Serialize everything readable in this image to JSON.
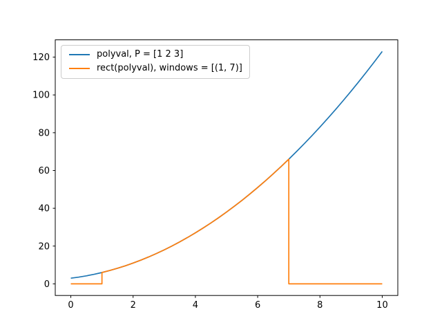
{
  "figure": {
    "background": "#ffffff",
    "axis_color": "#000000",
    "tick_label_color": "#000000"
  },
  "chart_data": {
    "type": "line",
    "title": "",
    "xlabel": "",
    "ylabel": "",
    "xlim": [
      -0.5,
      10.5
    ],
    "ylim": [
      -6.15,
      129.15
    ],
    "xticks": [
      0,
      2,
      4,
      6,
      8,
      10
    ],
    "yticks": [
      0,
      20,
      40,
      60,
      80,
      100,
      120
    ],
    "grid": false,
    "legend": {
      "position": "upper-left",
      "border_color": "#cccccc",
      "background": "#ffffff"
    },
    "series": [
      {
        "name": "polyval, P = [1 2 3]",
        "color": "#1f77b4",
        "x": [
          0,
          0.25,
          0.5,
          0.75,
          1,
          1.25,
          1.5,
          1.75,
          2,
          2.25,
          2.5,
          2.75,
          3,
          3.25,
          3.5,
          3.75,
          4,
          4.25,
          4.5,
          4.75,
          5,
          5.25,
          5.5,
          5.75,
          6,
          6.25,
          6.5,
          6.75,
          7,
          7.25,
          7.5,
          7.75,
          8,
          8.25,
          8.5,
          8.75,
          9,
          9.25,
          9.5,
          9.75,
          10
        ],
        "y": [
          3,
          3.5625,
          4.25,
          5.0625,
          6,
          7.0625,
          8.25,
          9.5625,
          11,
          12.5625,
          14.25,
          16.0625,
          18,
          20.0625,
          22.25,
          24.5625,
          27,
          29.5625,
          32.25,
          35.0625,
          38,
          41.0625,
          44.25,
          47.5625,
          51,
          54.5625,
          58.25,
          62.0625,
          66,
          70.0625,
          74.25,
          78.5625,
          83,
          87.5625,
          92.25,
          97.0625,
          102,
          107.0625,
          112.25,
          117.5625,
          123
        ]
      },
      {
        "name": "rect(polyval), windows = [(1, 7)]",
        "color": "#ff7f0e",
        "x": [
          0,
          1,
          1,
          1.25,
          1.5,
          1.75,
          2,
          2.25,
          2.5,
          2.75,
          3,
          3.25,
          3.5,
          3.75,
          4,
          4.25,
          4.5,
          4.75,
          5,
          5.25,
          5.5,
          5.75,
          6,
          6.25,
          6.5,
          6.75,
          7,
          7,
          10
        ],
        "y": [
          0,
          0,
          6,
          7.0625,
          8.25,
          9.5625,
          11,
          12.5625,
          14.25,
          16.0625,
          18,
          20.0625,
          22.25,
          24.5625,
          27,
          29.5625,
          32.25,
          35.0625,
          38,
          41.0625,
          44.25,
          47.5625,
          51,
          54.5625,
          58.25,
          62.0625,
          66,
          0,
          0
        ]
      }
    ]
  }
}
